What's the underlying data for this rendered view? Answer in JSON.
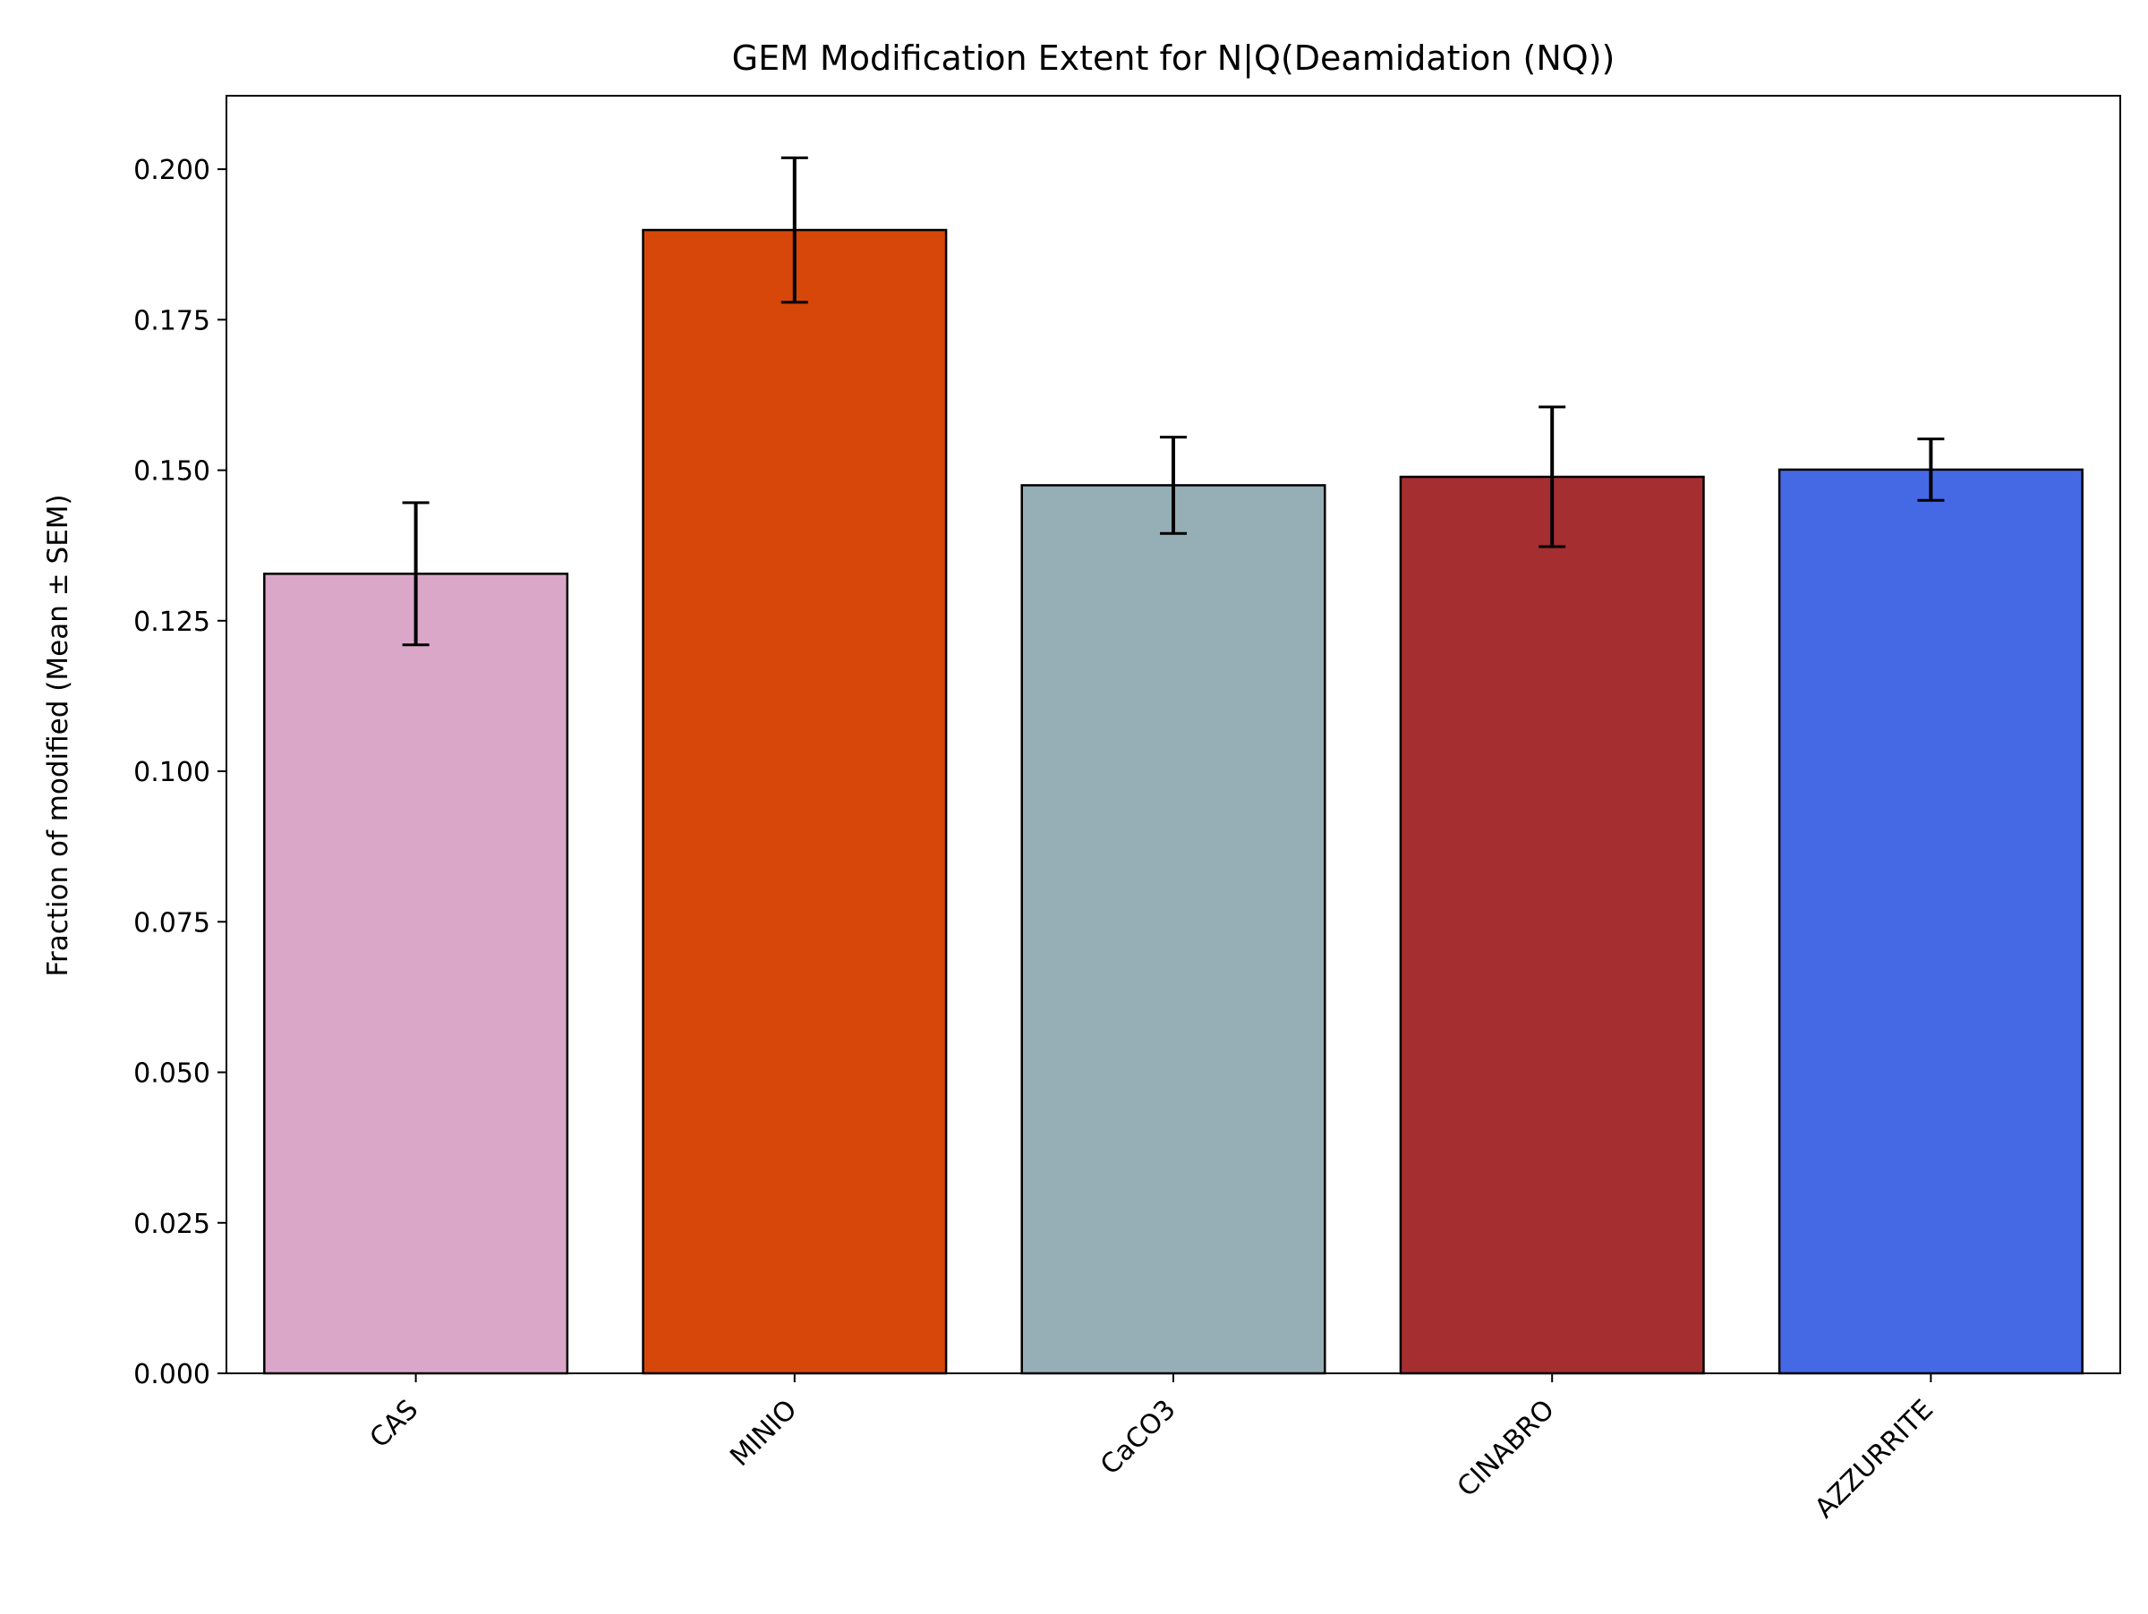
{
  "chart_data": {
    "type": "bar",
    "title": "GEM Modification Extent for N|Q(Deamidation (NQ))",
    "xlabel": "",
    "ylabel": "Fraction of modified (Mean ± SEM)",
    "categories": [
      "CAS",
      "MINIO",
      "CaCO3",
      "CINABRO",
      "AZZURRITE"
    ],
    "values": [
      0.1328,
      0.1899,
      0.1475,
      0.1489,
      0.1501
    ],
    "errors": [
      0.0118,
      0.012,
      0.008,
      0.0116,
      0.0051
    ],
    "colors": [
      "#dba7c9",
      "#d74709",
      "#96aeb5",
      "#a52e31",
      "#4568e4"
    ],
    "edge_color": "#000000",
    "ylim": [
      0,
      0.2122
    ],
    "yticks": [
      0.0,
      0.025,
      0.05,
      0.075,
      0.1,
      0.125,
      0.15,
      0.175,
      0.2
    ],
    "ytick_labels": [
      "0.000",
      "0.025",
      "0.050",
      "0.075",
      "0.100",
      "0.125",
      "0.150",
      "0.175",
      "0.200"
    ],
    "grid": false,
    "legend": "none"
  }
}
